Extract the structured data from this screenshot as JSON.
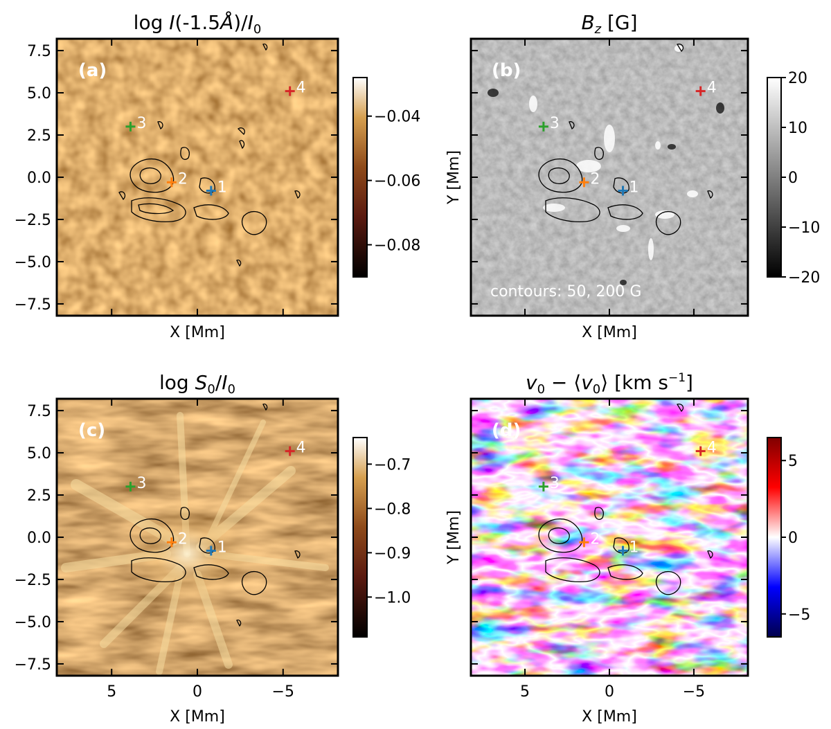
{
  "figure": {
    "contour_note": "contours: 50, 200 G"
  },
  "chart_data": [
    {
      "id": "a",
      "type": "heatmap",
      "panel_label": "(a)",
      "title_prefix": "log ",
      "title_italic": "I",
      "title_middle": "(-1.5",
      "title_angstrom": "Å",
      "title_after": ")/",
      "title_i0": "I",
      "title_i0_sub": "0",
      "xlabel": "X [Mm]",
      "ylabel": "",
      "xlim": [
        8.2,
        -8.2
      ],
      "ylim": [
        -8.2,
        8.2
      ],
      "xticks": [],
      "yticks": [
        7.5,
        5.0,
        2.5,
        0.0,
        -2.5,
        -5.0,
        -7.5
      ],
      "ytick_labels": [
        "7.5",
        "5.0",
        "2.5",
        "0.0",
        "−2.5",
        "−5.0",
        "−7.5"
      ],
      "colormap": "copper-like",
      "colorbar": {
        "range": [
          -0.09,
          -0.028
        ],
        "ticks": [
          -0.04,
          -0.06,
          -0.08
        ],
        "labels": [
          "−0.04",
          "−0.06",
          "−0.08"
        ]
      },
      "markers": [
        {
          "label": "1",
          "x": -0.8,
          "y": -0.8,
          "color": "#1f77b4"
        },
        {
          "label": "2",
          "x": 1.5,
          "y": -0.3,
          "color": "#ff7f0e"
        },
        {
          "label": "3",
          "x": 3.9,
          "y": 3.0,
          "color": "#2ca02c"
        },
        {
          "label": "4",
          "x": -5.4,
          "y": 5.1,
          "color": "#d62728"
        }
      ]
    },
    {
      "id": "b",
      "type": "heatmap",
      "panel_label": "(b)",
      "title_b": "B",
      "title_b_sub": "z",
      "title_unit": " [G]",
      "xlabel": "X [Mm]",
      "ylabel": "Y [Mm]",
      "xlim": [
        8.2,
        -8.2
      ],
      "ylim": [
        -8.2,
        8.2
      ],
      "xticks": [],
      "yticks": [],
      "colormap": "gray",
      "colorbar": {
        "range": [
          -20,
          20
        ],
        "ticks": [
          20,
          10,
          0,
          -10,
          -20
        ],
        "labels": [
          "20",
          "10",
          "0",
          "−10",
          "−20"
        ]
      },
      "markers": [
        {
          "label": "1",
          "x": -0.8,
          "y": -0.8,
          "color": "#1f77b4"
        },
        {
          "label": "2",
          "x": 1.5,
          "y": -0.3,
          "color": "#ff7f0e"
        },
        {
          "label": "3",
          "x": 3.9,
          "y": 3.0,
          "color": "#2ca02c"
        },
        {
          "label": "4",
          "x": -5.4,
          "y": 5.1,
          "color": "#d62728"
        }
      ]
    },
    {
      "id": "c",
      "type": "heatmap",
      "panel_label": "(c)",
      "title_prefix": "log ",
      "title_s": "S",
      "title_s_sub": "0",
      "title_slash": "/",
      "title_i0": "I",
      "title_i0_sub": "0",
      "xlabel": "X [Mm]",
      "ylabel": "",
      "xlim": [
        8.2,
        -8.2
      ],
      "ylim": [
        -8.2,
        8.2
      ],
      "xticks": [
        5,
        0,
        -5
      ],
      "xtick_labels": [
        "5",
        "0",
        "−5"
      ],
      "yticks": [
        7.5,
        5.0,
        2.5,
        0.0,
        -2.5,
        -5.0,
        -7.5
      ],
      "ytick_labels": [
        "7.5",
        "5.0",
        "2.5",
        "0.0",
        "−2.5",
        "−5.0",
        "−7.5"
      ],
      "colormap": "copper-like",
      "colorbar": {
        "range": [
          -1.09,
          -0.64
        ],
        "ticks": [
          -0.7,
          -0.8,
          -0.9,
          -1.0
        ],
        "labels": [
          "−0.7",
          "−0.8",
          "−0.9",
          "−1.0"
        ]
      },
      "markers": [
        {
          "label": "1",
          "x": -0.8,
          "y": -0.8,
          "color": "#1f77b4"
        },
        {
          "label": "2",
          "x": 1.5,
          "y": -0.3,
          "color": "#ff7f0e"
        },
        {
          "label": "3",
          "x": 3.9,
          "y": 3.0,
          "color": "#2ca02c"
        },
        {
          "label": "4",
          "x": -5.4,
          "y": 5.1,
          "color": "#d62728"
        }
      ]
    },
    {
      "id": "d",
      "type": "heatmap",
      "panel_label": "(d)",
      "title_v": "v",
      "title_v_sub": "0",
      "title_minus": " − ⟨",
      "title_v2": "v",
      "title_v2_sub": "0",
      "title_close": "⟩ [km s",
      "title_sup": "−1",
      "title_end": "]",
      "xlabel": "X [Mm]",
      "ylabel": "Y [Mm]",
      "xlim": [
        8.2,
        -8.2
      ],
      "ylim": [
        -8.2,
        8.2
      ],
      "xticks": [
        5,
        0,
        -5
      ],
      "xtick_labels": [
        "5",
        "0",
        "−5"
      ],
      "yticks": [],
      "colormap": "seismic",
      "colorbar": {
        "range": [
          -6.5,
          6.5
        ],
        "ticks": [
          5,
          0,
          -5
        ],
        "labels": [
          "5",
          "0",
          "−5"
        ]
      },
      "markers": [
        {
          "label": "1",
          "x": -0.8,
          "y": -0.8,
          "color": "#1f77b4"
        },
        {
          "label": "2",
          "x": 1.5,
          "y": -0.3,
          "color": "#ff7f0e"
        },
        {
          "label": "3",
          "x": 3.9,
          "y": 3.0,
          "color": "#2ca02c"
        },
        {
          "label": "4",
          "x": -5.4,
          "y": 5.1,
          "color": "#d62728"
        }
      ]
    }
  ]
}
